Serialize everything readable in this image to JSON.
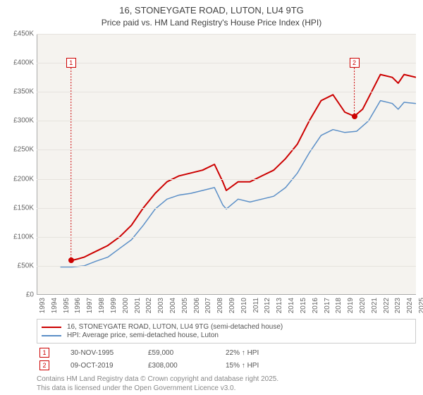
{
  "chart": {
    "type": "line",
    "title_line1": "16, STONEYGATE ROAD, LUTON, LU4 9TG",
    "title_line2": "Price paid vs. HM Land Registry's House Price Index (HPI)",
    "background_color": "#f5f3ef",
    "grid_color": "#e6e3de",
    "title_fontsize": 13,
    "label_fontsize": 10,
    "ylim": [
      0,
      450000
    ],
    "xlim": [
      1993,
      2025
    ],
    "ytick_step": 50000,
    "y_ticks": [
      "£0",
      "£50K",
      "£100K",
      "£150K",
      "£200K",
      "£250K",
      "£300K",
      "£350K",
      "£400K",
      "£450K"
    ],
    "x_ticks": [
      1993,
      1994,
      1995,
      1996,
      1997,
      1998,
      1999,
      2000,
      2001,
      2002,
      2003,
      2004,
      2005,
      2006,
      2007,
      2008,
      2009,
      2010,
      2011,
      2012,
      2013,
      2014,
      2015,
      2016,
      2017,
      2018,
      2019,
      2020,
      2021,
      2022,
      2023,
      2024,
      2025
    ],
    "series": [
      {
        "name": "16, STONEYGATE ROAD, LUTON, LU4 9TG (semi-detached house)",
        "color": "#cc0000",
        "line_width": 2,
        "points": [
          [
            1995.9,
            59000
          ],
          [
            1996.5,
            62000
          ],
          [
            1997,
            65000
          ],
          [
            1998,
            75000
          ],
          [
            1999,
            85000
          ],
          [
            2000,
            100000
          ],
          [
            2001,
            120000
          ],
          [
            2002,
            150000
          ],
          [
            2003,
            175000
          ],
          [
            2004,
            195000
          ],
          [
            2005,
            205000
          ],
          [
            2006,
            210000
          ],
          [
            2007,
            215000
          ],
          [
            2008,
            225000
          ],
          [
            2008.7,
            195000
          ],
          [
            2009,
            180000
          ],
          [
            2010,
            195000
          ],
          [
            2011,
            195000
          ],
          [
            2012,
            205000
          ],
          [
            2013,
            215000
          ],
          [
            2014,
            235000
          ],
          [
            2015,
            260000
          ],
          [
            2016,
            300000
          ],
          [
            2017,
            335000
          ],
          [
            2018,
            345000
          ],
          [
            2019,
            315000
          ],
          [
            2019.8,
            308000
          ],
          [
            2020.5,
            320000
          ],
          [
            2021,
            340000
          ],
          [
            2022,
            380000
          ],
          [
            2023,
            375000
          ],
          [
            2023.5,
            365000
          ],
          [
            2024,
            380000
          ],
          [
            2025,
            375000
          ]
        ]
      },
      {
        "name": "HPI: Average price, semi-detached house, Luton",
        "color": "#5b8fc7",
        "line_width": 1.5,
        "points": [
          [
            1995,
            48000
          ],
          [
            1996,
            48000
          ],
          [
            1997,
            50000
          ],
          [
            1998,
            58000
          ],
          [
            1999,
            65000
          ],
          [
            2000,
            80000
          ],
          [
            2001,
            95000
          ],
          [
            2002,
            120000
          ],
          [
            2003,
            148000
          ],
          [
            2004,
            165000
          ],
          [
            2005,
            172000
          ],
          [
            2006,
            175000
          ],
          [
            2007,
            180000
          ],
          [
            2008,
            185000
          ],
          [
            2008.7,
            155000
          ],
          [
            2009,
            148000
          ],
          [
            2010,
            165000
          ],
          [
            2011,
            160000
          ],
          [
            2012,
            165000
          ],
          [
            2013,
            170000
          ],
          [
            2014,
            185000
          ],
          [
            2015,
            210000
          ],
          [
            2016,
            245000
          ],
          [
            2017,
            275000
          ],
          [
            2018,
            285000
          ],
          [
            2019,
            280000
          ],
          [
            2020,
            282000
          ],
          [
            2021,
            300000
          ],
          [
            2022,
            335000
          ],
          [
            2023,
            330000
          ],
          [
            2023.5,
            320000
          ],
          [
            2024,
            332000
          ],
          [
            2025,
            330000
          ]
        ]
      }
    ],
    "markers": [
      {
        "n": "1",
        "x": 1995.9,
        "y": 59000,
        "box_y": 400000,
        "color": "#cc0000"
      },
      {
        "n": "2",
        "x": 2019.8,
        "y": 308000,
        "box_y": 400000,
        "color": "#cc0000"
      }
    ]
  },
  "legend": {
    "items": [
      {
        "color": "#cc0000",
        "label": "16, STONEYGATE ROAD, LUTON, LU4 9TG (semi-detached house)"
      },
      {
        "color": "#5b8fc7",
        "label": "HPI: Average price, semi-detached house, Luton"
      }
    ]
  },
  "data_points": [
    {
      "n": "1",
      "color": "#cc0000",
      "date": "30-NOV-1995",
      "price": "£59,000",
      "delta": "22% ↑ HPI"
    },
    {
      "n": "2",
      "color": "#cc0000",
      "date": "09-OCT-2019",
      "price": "£308,000",
      "delta": "15% ↑ HPI"
    }
  ],
  "footer": {
    "line1": "Contains HM Land Registry data © Crown copyright and database right 2025.",
    "line2": "This data is licensed under the Open Government Licence v3.0."
  }
}
